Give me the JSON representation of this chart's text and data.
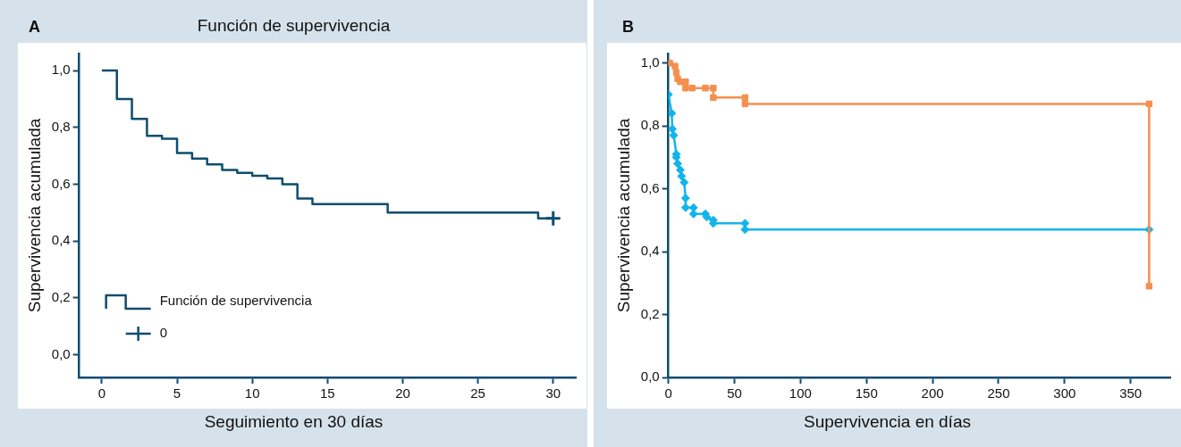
{
  "chart_data": [
    {
      "type": "step",
      "title": "Función de supervivencia",
      "xlabel": "Seguimiento en 30 días",
      "ylabel": "Supervivencia acumulada",
      "annotations": [
        "A"
      ],
      "xlim": [
        -1.5,
        31.5
      ],
      "xticks": [
        0,
        5,
        10,
        15,
        20,
        25,
        30
      ],
      "ylim": [
        -0.08,
        1.06
      ],
      "yticks": [
        {
          "value": 0,
          "label": "0,0"
        },
        {
          "value": 0.2,
          "label": "0,2"
        },
        {
          "value": 0.4,
          "label": "0,4"
        },
        {
          "value": 0.6,
          "label": "0,6"
        },
        {
          "value": 0.8,
          "label": "0,8"
        },
        {
          "value": 1,
          "label": "1,0"
        }
      ],
      "grid": false,
      "legend": "bottom left",
      "series": [
        {
          "name": "Función de supervivencia",
          "marker": "none",
          "color": "#0e4d6e",
          "x": [
            0,
            1,
            2,
            3,
            4,
            5,
            6,
            7,
            8,
            9,
            10,
            11,
            12,
            13,
            14,
            19,
            29,
            30
          ],
          "values": [
            1,
            0.9,
            0.83,
            0.77,
            0.76,
            0.71,
            0.69,
            0.67,
            0.65,
            0.64,
            0.63,
            0.62,
            0.6,
            0.55,
            0.53,
            0.5,
            0.48,
            0.48
          ]
        },
        {
          "name": "0",
          "type": "scatter",
          "marker": "cross",
          "color": "#0e4d6e",
          "x": [
            30
          ],
          "values": [
            0.48
          ]
        }
      ]
    },
    {
      "type": "line",
      "xlabel": "Supervivencia en días",
      "ylabel": "Supervivencia acumulada",
      "annotations": [
        "B"
      ],
      "xlim": [
        0,
        380
      ],
      "xticks": [
        0,
        50,
        100,
        150,
        200,
        250,
        300,
        350
      ],
      "ylim": [
        0,
        1.03
      ],
      "yticks": [
        {
          "value": 0,
          "label": "0,0"
        },
        {
          "value": 0.2,
          "label": "0,2"
        },
        {
          "value": 0.4,
          "label": "0,4"
        },
        {
          "value": 0.6,
          "label": "0,6"
        },
        {
          "value": 0.8,
          "label": "0,8"
        },
        {
          "value": 1,
          "label": "1,0"
        }
      ],
      "grid": false,
      "legend": false,
      "series": [
        {
          "marker": "square",
          "color": "#f58f4e",
          "x": [
            0,
            1,
            5,
            6,
            7,
            9,
            13,
            13,
            18,
            28,
            34,
            34,
            58,
            58,
            364,
            364
          ],
          "values": [
            1,
            1,
            0.99,
            0.97,
            0.95,
            0.94,
            0.94,
            0.92,
            0.92,
            0.92,
            0.92,
            0.89,
            0.89,
            0.87,
            0.87,
            0.29
          ]
        },
        {
          "marker": "diamond",
          "color": "#13b5ea",
          "x": [
            0,
            2.5,
            3,
            4,
            6,
            6,
            7,
            9,
            10,
            12,
            13,
            13,
            19,
            19,
            28,
            29,
            34,
            34,
            58,
            58,
            364
          ],
          "values": [
            0.9,
            0.84,
            0.79,
            0.77,
            0.71,
            0.7,
            0.68,
            0.66,
            0.64,
            0.62,
            0.57,
            0.54,
            0.54,
            0.52,
            0.52,
            0.51,
            0.5,
            0.49,
            0.49,
            0.47,
            0.47
          ]
        }
      ]
    }
  ]
}
